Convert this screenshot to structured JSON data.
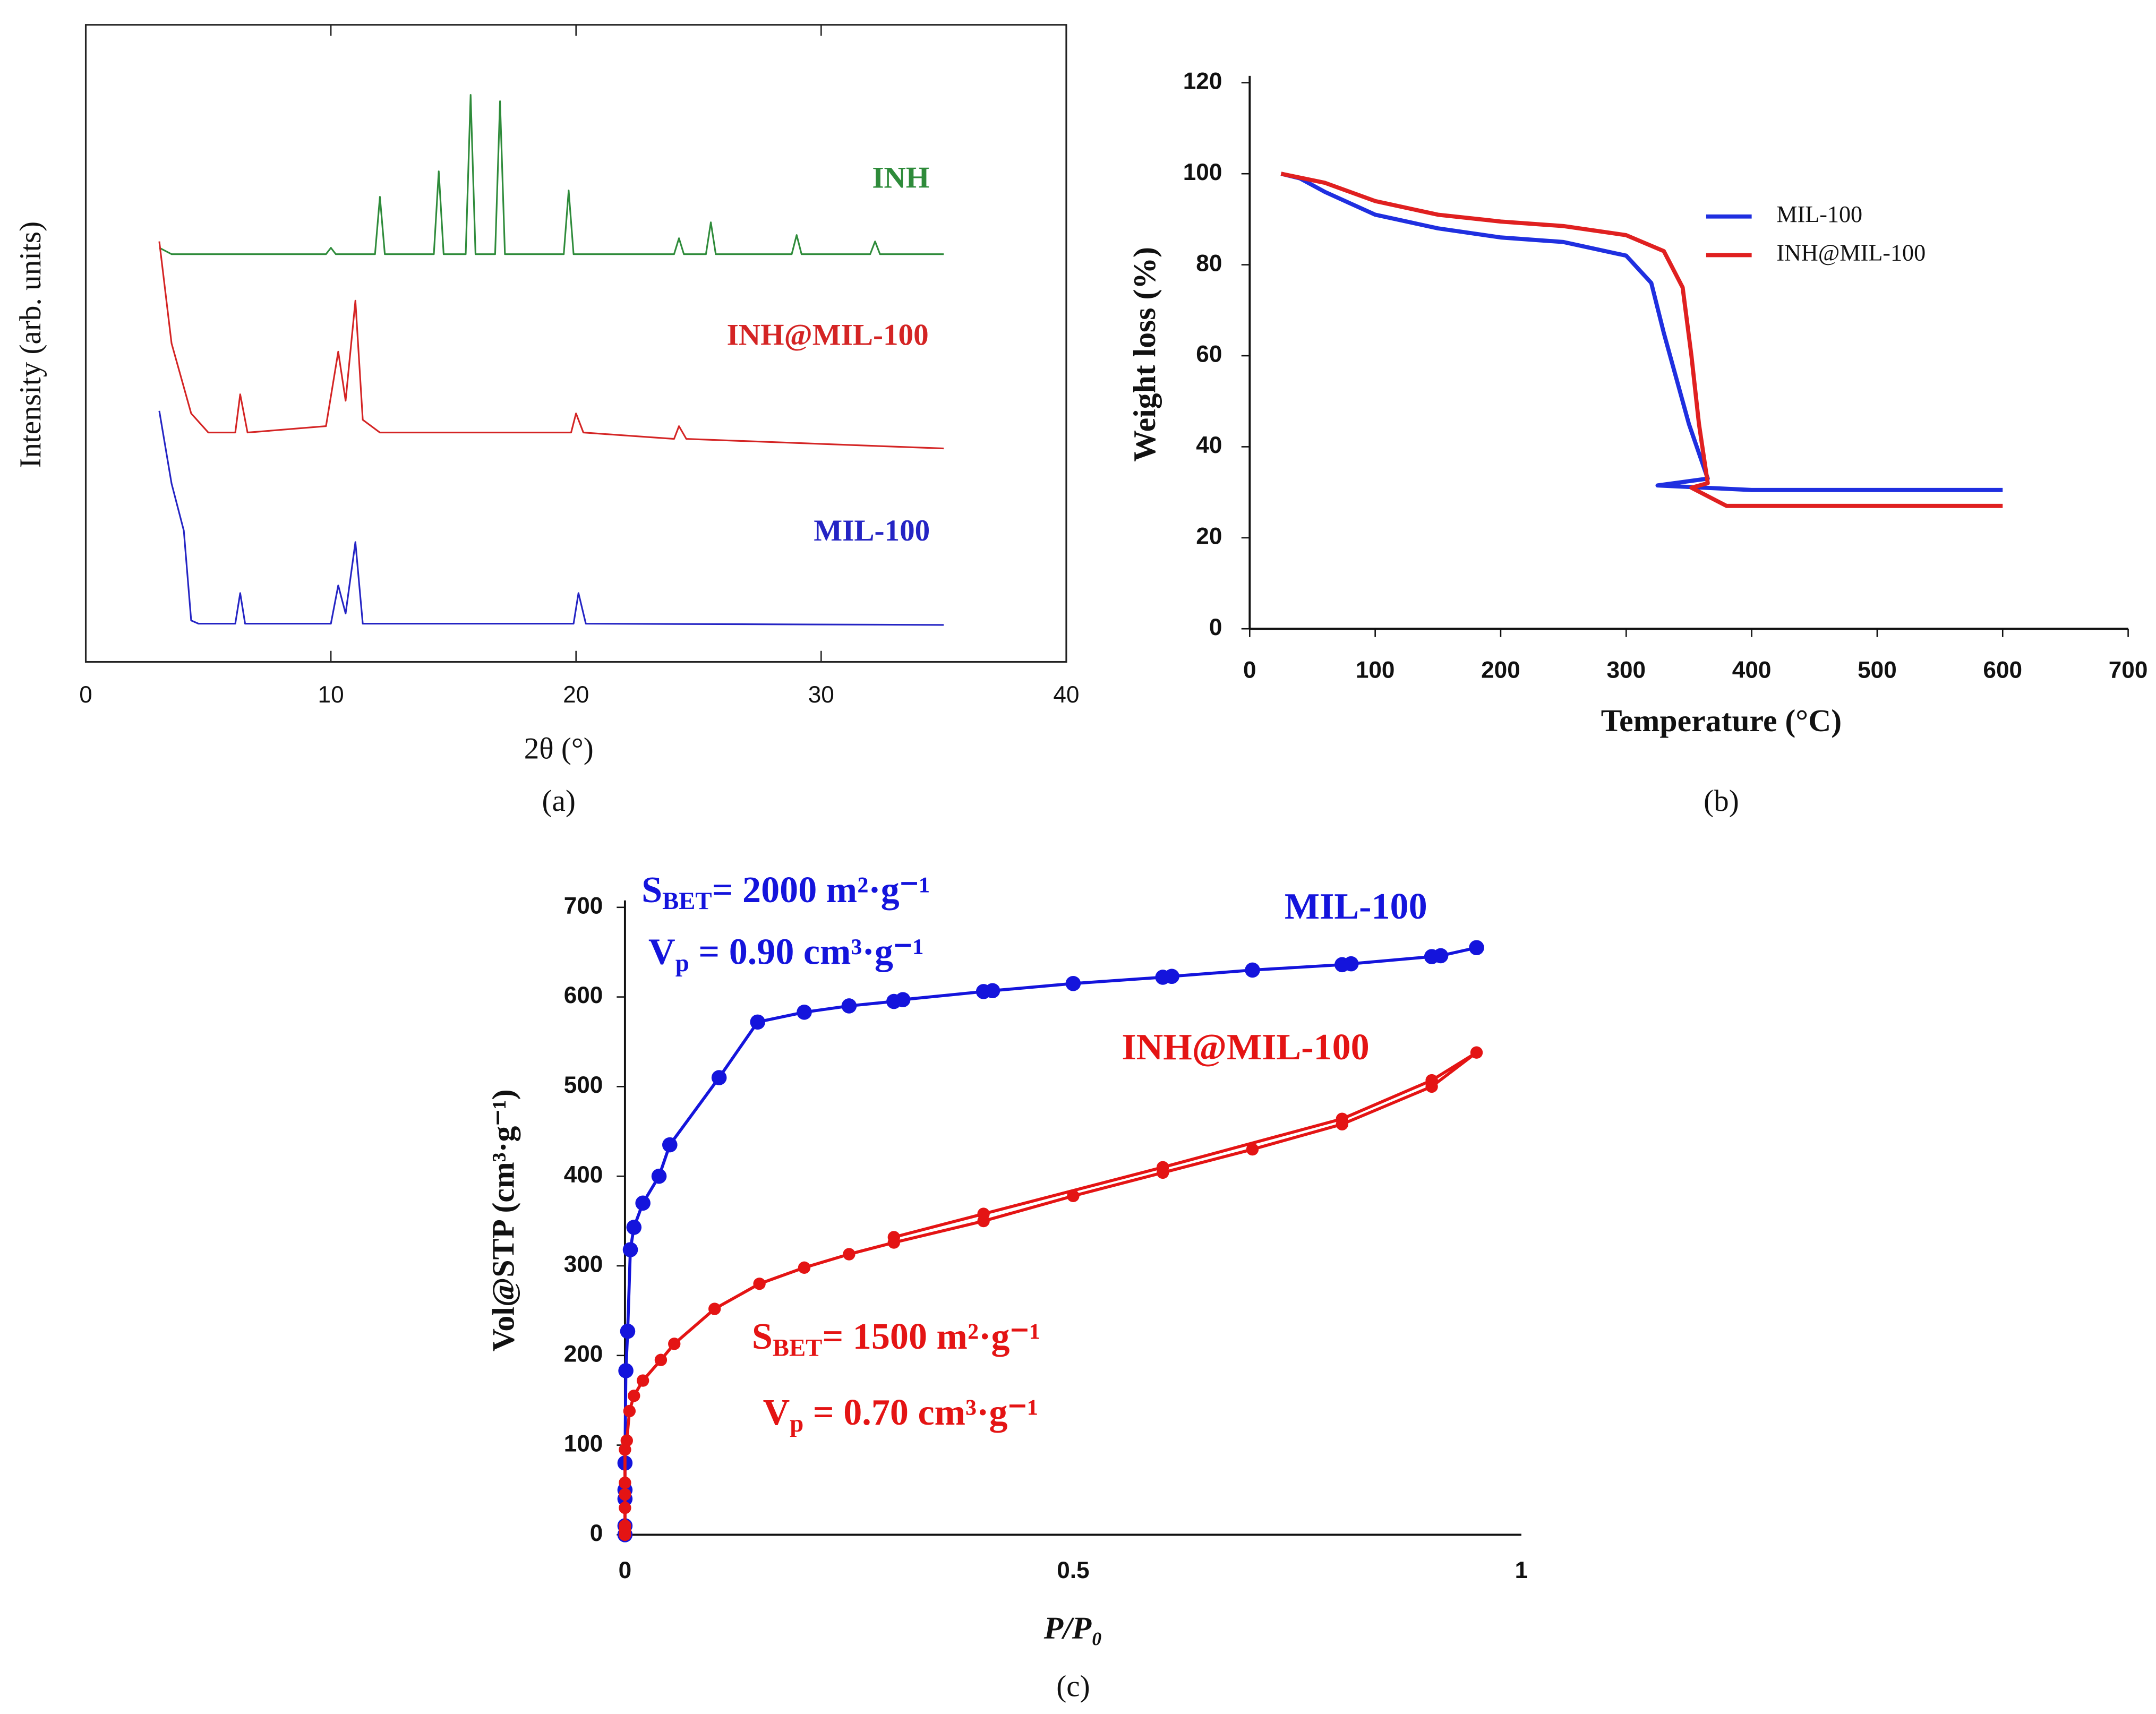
{
  "chart_data": [
    {
      "type": "line",
      "caption": "(a)",
      "xlabel": "2θ (°)",
      "ylabel": "Intensity  (arb. units)",
      "xlim": [
        0,
        40
      ],
      "xticks": [
        0,
        10,
        20,
        30,
        40
      ],
      "ylim": [
        0,
        100
      ],
      "series": [
        {
          "name": "INH",
          "color": "#2e8b3a",
          "x": [
            3,
            3.5,
            9.8,
            10,
            10.2,
            11.8,
            12,
            12.2,
            14.2,
            14.4,
            14.6,
            15.5,
            15.7,
            15.9,
            16.7,
            16.9,
            17.1,
            19.5,
            19.7,
            19.9,
            24,
            24.2,
            24.4,
            25.3,
            25.5,
            25.7,
            28.8,
            29,
            29.2,
            32,
            32.2,
            32.4,
            35
          ],
          "values": [
            65,
            64,
            64,
            65,
            64,
            64,
            73,
            64,
            64,
            77,
            64,
            64,
            89,
            64,
            64,
            88,
            64,
            64,
            74,
            64,
            64,
            66.5,
            64,
            64,
            69,
            64,
            64,
            67,
            64,
            64,
            66,
            64,
            64
          ]
        },
        {
          "name": "INH@MIL-100",
          "color": "#d42424",
          "x": [
            3,
            3.5,
            4.3,
            5,
            6.1,
            6.3,
            6.6,
            9.8,
            10.3,
            10.6,
            11,
            11.3,
            12,
            19.8,
            20,
            20.3,
            24,
            24.2,
            24.5,
            35
          ],
          "values": [
            66,
            50,
            39,
            36,
            36,
            42,
            36,
            37,
            48.7,
            41,
            56.7,
            38,
            36,
            36,
            39,
            36,
            35,
            37,
            35,
            33.5
          ]
        },
        {
          "name": "MIL-100",
          "color": "#2424c4",
          "x": [
            3,
            3.5,
            4,
            4.3,
            4.6,
            6.1,
            6.3,
            6.5,
            10,
            10.3,
            10.6,
            11,
            11.3,
            19.9,
            20.1,
            20.4,
            35
          ],
          "values": [
            39.4,
            28,
            20.6,
            6.5,
            6,
            6,
            10.8,
            6,
            6,
            12,
            7.6,
            18.8,
            6,
            6,
            10.8,
            6,
            5.8
          ]
        }
      ]
    },
    {
      "type": "line",
      "caption": "(b)",
      "xlabel": "Temperature (°C)",
      "ylabel": "Weight loss (%)",
      "xlim": [
        0,
        700
      ],
      "xticks": [
        0,
        100,
        200,
        300,
        400,
        500,
        600,
        700
      ],
      "ylim": [
        0,
        120
      ],
      "yticks": [
        0,
        20,
        40,
        60,
        80,
        100,
        120
      ],
      "legend": "upper right",
      "series": [
        {
          "name": "MIL-100",
          "color": "#1f2fe0",
          "x": [
            25,
            40,
            60,
            100,
            150,
            200,
            250,
            300,
            320,
            330,
            340,
            350,
            365,
            325,
            400,
            600
          ],
          "values": [
            100,
            99,
            96,
            91,
            88,
            86,
            85,
            82,
            76,
            65,
            55,
            45,
            33,
            31.5,
            30.5,
            30.5
          ]
        },
        {
          "name": "INH@MIL-100",
          "color": "#e02020",
          "x": [
            25,
            60,
            100,
            150,
            200,
            250,
            300,
            330,
            345,
            352,
            358,
            365,
            352,
            380,
            600
          ],
          "values": [
            100,
            98,
            94,
            91,
            89.5,
            88.5,
            86.5,
            83,
            75,
            60,
            45,
            32,
            31,
            27,
            27
          ]
        }
      ]
    },
    {
      "type": "line",
      "caption": "(c)",
      "xlabel": "P/P₀",
      "ylabel": "Vol@STP (cm³·g⁻¹)",
      "xlim": [
        0,
        1
      ],
      "xticks": [
        0,
        0.5,
        1
      ],
      "ylim": [
        0,
        700
      ],
      "yticks": [
        0,
        100,
        200,
        300,
        400,
        500,
        600,
        700
      ],
      "markers": true,
      "series": [
        {
          "name": "MIL-100",
          "color": "#1414dc",
          "x": [
            0,
            0,
            0,
            0,
            0,
            0.001,
            0.003,
            0.006,
            0.01,
            0.02,
            0.038,
            0.05,
            0.105,
            0.148,
            0.2,
            0.25,
            0.3,
            0.31,
            0.4,
            0.41,
            0.5,
            0.6,
            0.61,
            0.7,
            0.8,
            0.81,
            0.9,
            0.91,
            0.95
          ],
          "values": [
            0,
            10,
            40,
            50,
            80,
            183,
            227,
            318,
            343,
            370,
            400,
            435,
            510,
            572,
            583,
            590,
            595,
            597,
            606,
            607,
            615,
            622,
            623,
            630,
            636,
            637,
            645,
            646,
            655
          ]
        },
        {
          "name": "INH@MIL-100",
          "color": "#e41414",
          "x": [
            0,
            0,
            0,
            0,
            0,
            0,
            0,
            0.002,
            0.005,
            0.01,
            0.02,
            0.04,
            0.055,
            0.1,
            0.15,
            0.2,
            0.25,
            0.3,
            0.4,
            0.5,
            0.6,
            0.7,
            0.8,
            0.9,
            0.95,
            0.9,
            0.8,
            0.6,
            0.4,
            0.3
          ],
          "values": [
            0,
            5,
            10,
            30,
            45,
            58,
            95,
            105,
            138,
            155,
            172,
            195,
            213,
            252,
            280,
            298,
            313,
            326,
            350,
            378,
            404,
            430,
            458,
            500,
            538,
            507,
            464,
            410,
            358,
            332
          ]
        }
      ],
      "annotations": [
        {
          "symbol": "S",
          "subscript": "BET",
          "text": "= 2000 m²·g⁻¹",
          "color": "#1414dc"
        },
        {
          "symbol": "V",
          "subscript": "p",
          "text": " = 0.90 cm³·g⁻¹",
          "color": "#1414dc"
        },
        {
          "symbol": "S",
          "subscript": "BET",
          "text": "= 1500 m²·g⁻¹",
          "color": "#e41414"
        },
        {
          "symbol": "V",
          "subscript": "p",
          "text": " = 0.70 cm³·g⁻¹",
          "color": "#e41414"
        }
      ]
    }
  ]
}
